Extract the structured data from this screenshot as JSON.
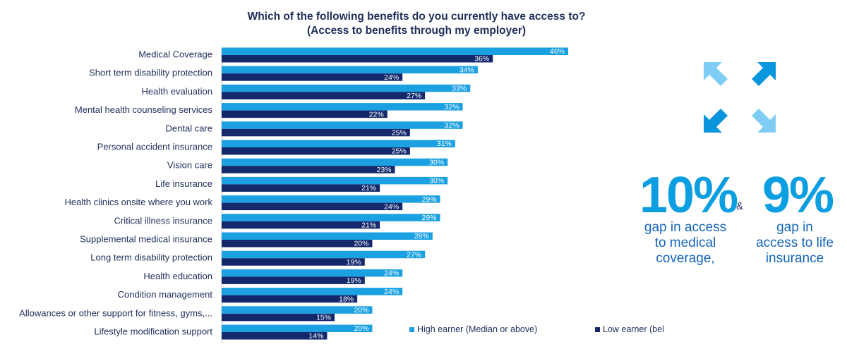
{
  "chart_data": {
    "type": "bar",
    "orientation": "horizontal",
    "title": "Which of the following benefits do you currently have access to?",
    "subtitle": "(Access to benefits through my employer)",
    "categories": [
      "Medical Coverage",
      "Short term disability protection",
      "Health evaluation",
      "Mental health counseling services",
      "Dental care",
      "Personal accident insurance",
      "Vision care",
      "Life insurance",
      "Health clinics onsite where you work",
      "Critical illness insurance",
      "Supplemental medical insurance",
      "Long term disability protection",
      "Health education",
      "Condition management",
      "Allowances or other support for fitness, gyms,...",
      "Lifestyle modification support"
    ],
    "series": [
      {
        "name": "High earner (Median or above)",
        "color": "#1ba1e2",
        "values": [
          46,
          34,
          33,
          32,
          32,
          31,
          30,
          30,
          29,
          29,
          28,
          27,
          24,
          24,
          20,
          20
        ]
      },
      {
        "name": "Low earner (below median)",
        "color": "#13296b",
        "values": [
          36,
          24,
          27,
          22,
          25,
          25,
          23,
          21,
          24,
          21,
          20,
          19,
          19,
          18,
          15,
          14
        ]
      }
    ],
    "value_suffix": "%",
    "xlim": [
      0,
      46
    ],
    "legend": "bottom-right"
  },
  "callout": {
    "medical_value": "10%",
    "medical_lines": [
      "gap in access",
      "to medical",
      "coverage,"
    ],
    "amp": "&",
    "life_value": "9%",
    "life_lines": [
      "gap in",
      "access to life",
      "insurance"
    ]
  },
  "icons": [
    "arrow-northwest-icon",
    "arrow-northeast-icon",
    "arrow-southwest-icon",
    "arrow-southeast-icon"
  ],
  "colors": {
    "light_arrow": "#7fcdf4",
    "dark_arrow": "#0a95dd"
  }
}
